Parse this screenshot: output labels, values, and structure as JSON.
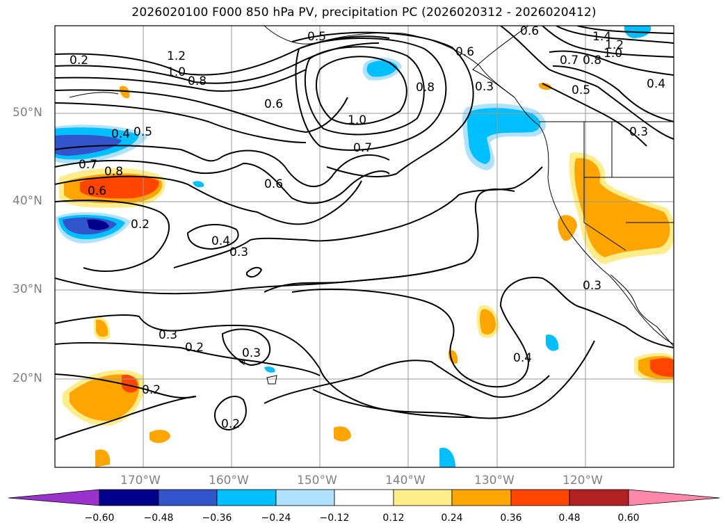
{
  "title": "2026020100 F000 850 hPa PV, precipitation PC (2026020312 - 2026020412)",
  "latitude_labels": [
    "50°N",
    "40°N",
    "30°N",
    "20°N"
  ],
  "longitude_labels": [
    "170°W",
    "160°W",
    "150°W",
    "140°W",
    "130°W",
    "120°W"
  ],
  "contour_labels": [
    "1.4",
    "1.2",
    "1.0",
    "0.8",
    "0.7",
    "0.6",
    "0.5",
    "0.4",
    "0.3",
    "0.2",
    "1.2",
    "1.0",
    "0.8",
    "0.6",
    "0.5",
    "0.4",
    "0.7",
    "0.8",
    "0.6",
    "0.2",
    "0.4",
    "0.3",
    "0.6",
    "0.7",
    "1.0",
    "0.8",
    "0.3",
    "0.2",
    "0.3",
    "0.2",
    "0.2",
    "0.4",
    "0.3",
    "0.6",
    "0.3",
    "0.5",
    "1.2",
    "1.0",
    "0.8",
    "0.7",
    "0.4",
    "0.5",
    "0.3"
  ],
  "colorbar": {
    "ticks": [
      "−0.60",
      "−0.48",
      "−0.36",
      "−0.24",
      "−0.12",
      "0.12",
      "0.24",
      "0.36",
      "0.48",
      "0.60"
    ],
    "colors": [
      "#9933cc",
      "#00008b",
      "#3355cc",
      "#00bfff",
      "#b0e2ff",
      "#ffffff",
      "#ffec8b",
      "#ffa500",
      "#ff4500",
      "#b22222",
      "#ff88aa"
    ]
  }
}
